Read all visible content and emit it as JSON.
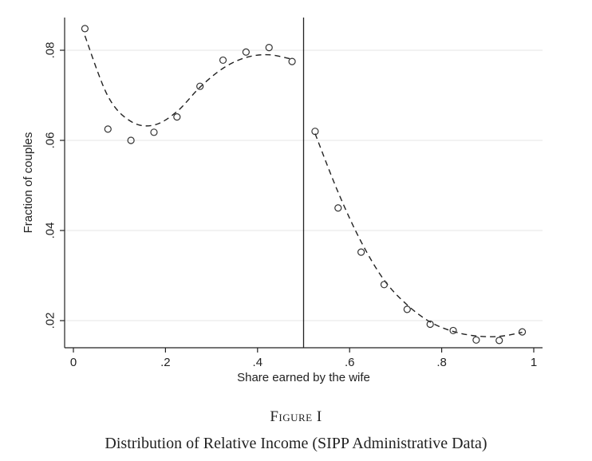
{
  "chart_data": {
    "type": "scatter",
    "xlabel": "Share earned by the wife",
    "ylabel": "Fraction of couples",
    "xlim": [
      0,
      1
    ],
    "ylim": [
      0.0125,
      0.088
    ],
    "x_ticks": [
      0,
      0.2,
      0.4,
      0.6,
      0.8,
      1
    ],
    "x_tick_labels": [
      "0",
      ".2",
      ".4",
      ".6",
      ".8",
      "1"
    ],
    "y_ticks": [
      0.02,
      0.04,
      0.06,
      0.08
    ],
    "y_tick_labels": [
      ".02",
      ".04",
      ".06",
      ".08"
    ],
    "grid": "horizontal",
    "threshold_line_x": 0.5,
    "series": [
      {
        "name": "bin fractions",
        "x": [
          0.025,
          0.075,
          0.125,
          0.175,
          0.225,
          0.275,
          0.325,
          0.375,
          0.425,
          0.475,
          0.525,
          0.575,
          0.625,
          0.675,
          0.725,
          0.775,
          0.825,
          0.875,
          0.925,
          0.975
        ],
        "y": [
          0.0848,
          0.0625,
          0.06,
          0.0618,
          0.0652,
          0.072,
          0.0778,
          0.0796,
          0.0806,
          0.0775,
          0.062,
          0.045,
          0.0352,
          0.028,
          0.0225,
          0.0192,
          0.0178,
          0.0157,
          0.0156,
          0.0175
        ]
      },
      {
        "name": "fitted curve (left of 0.5)",
        "x": [
          0.025,
          0.075,
          0.125,
          0.175,
          0.225,
          0.275,
          0.325,
          0.375,
          0.425,
          0.475
        ],
        "y": [
          0.0832,
          0.0698,
          0.0642,
          0.0634,
          0.0664,
          0.0718,
          0.076,
          0.0784,
          0.079,
          0.078
        ]
      },
      {
        "name": "fitted curve (right of 0.5)",
        "x": [
          0.525,
          0.575,
          0.625,
          0.675,
          0.725,
          0.775,
          0.825,
          0.875,
          0.925,
          0.975
        ],
        "y": [
          0.0615,
          0.0485,
          0.0375,
          0.029,
          0.0235,
          0.0197,
          0.0176,
          0.0166,
          0.0165,
          0.0174
        ]
      }
    ]
  },
  "caption": {
    "label": "Figure I",
    "title": "Distribution of Relative Income (SIPP Administrative Data)"
  }
}
